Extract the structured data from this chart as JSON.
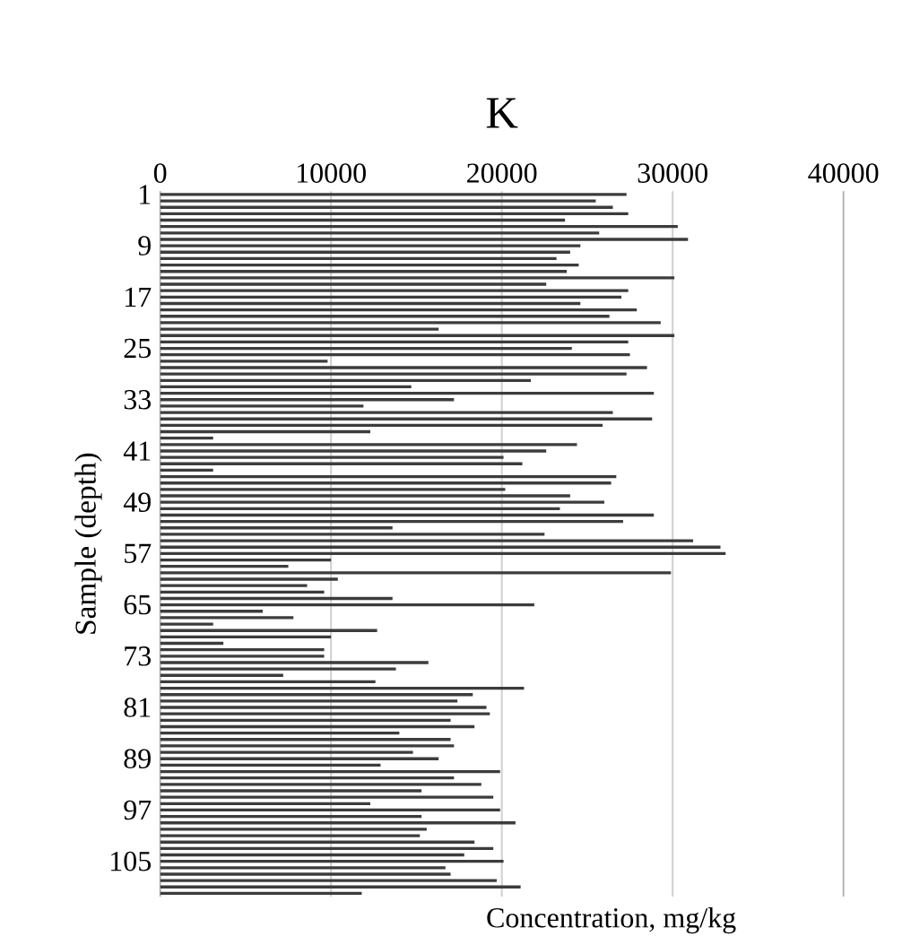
{
  "chart_data": {
    "type": "bar",
    "orientation": "horizontal",
    "title": "K",
    "xlabel": "Concentration, mg/kg",
    "ylabel": "Sample (depth)",
    "categories": [
      "1",
      null,
      null,
      null,
      null,
      null,
      null,
      null,
      "9",
      null,
      null,
      null,
      null,
      null,
      null,
      null,
      "17",
      null,
      null,
      null,
      null,
      null,
      null,
      null,
      "25",
      null,
      null,
      null,
      null,
      null,
      null,
      null,
      "33",
      null,
      null,
      null,
      null,
      null,
      null,
      null,
      "41",
      null,
      null,
      null,
      null,
      null,
      null,
      null,
      "49",
      null,
      null,
      null,
      null,
      null,
      null,
      null,
      "57",
      null,
      null,
      null,
      null,
      null,
      null,
      null,
      "65",
      null,
      null,
      null,
      null,
      null,
      null,
      null,
      "73",
      null,
      null,
      null,
      null,
      null,
      null,
      null,
      "81",
      null,
      null,
      null,
      null,
      null,
      null,
      null,
      "89",
      null,
      null,
      null,
      null,
      null,
      null,
      null,
      "97",
      null,
      null,
      null,
      null,
      null,
      null,
      null,
      "105",
      null,
      null,
      null,
      null,
      null
    ],
    "values": [
      27300,
      25500,
      26500,
      27400,
      23700,
      30300,
      25700,
      30900,
      24600,
      24000,
      23200,
      24500,
      23800,
      30100,
      22600,
      27400,
      27000,
      24600,
      27900,
      26300,
      29300,
      16300,
      30100,
      27400,
      24100,
      27500,
      9800,
      28500,
      27300,
      21700,
      14700,
      28900,
      17200,
      11900,
      26500,
      28800,
      25900,
      12300,
      3100,
      24400,
      22600,
      20100,
      21200,
      3100,
      26700,
      26400,
      20200,
      24000,
      26000,
      23400,
      28900,
      27100,
      13600,
      22500,
      31200,
      32800,
      33100,
      10000,
      7500,
      29900,
      10400,
      8600,
      9600,
      13600,
      21900,
      6000,
      7800,
      3100,
      12700,
      10000,
      3700,
      9600,
      9600,
      15700,
      13800,
      7200,
      12600,
      21300,
      18300,
      17400,
      19100,
      19300,
      17000,
      18400,
      14000,
      17000,
      17200,
      14800,
      16300,
      12900,
      19900,
      17200,
      18800,
      15300,
      19500,
      12300,
      19900,
      15300,
      20800,
      15600,
      15200,
      18400,
      19500,
      17800,
      20100,
      16700,
      17000,
      19700,
      21100,
      11800
    ],
    "color": "#3c3c3c",
    "xlim": [
      0,
      40000
    ],
    "xticks": [
      0,
      10000,
      20000,
      30000,
      40000
    ],
    "grid": "x"
  }
}
